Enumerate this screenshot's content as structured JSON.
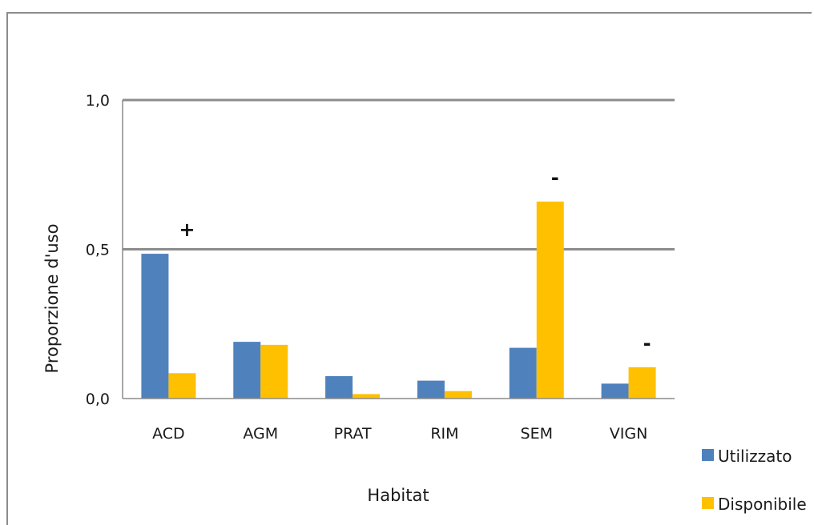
{
  "chart_data": {
    "type": "bar",
    "title": "",
    "xlabel": "Habitat",
    "ylabel": "Proporzione d'uso",
    "ylim": [
      0,
      1.0
    ],
    "yticks": [
      {
        "value": 0.0,
        "label": "0,0"
      },
      {
        "value": 0.5,
        "label": "0,5"
      },
      {
        "value": 1.0,
        "label": "1,0"
      }
    ],
    "grid": "major horizontal lines at 0,5 and 1,0",
    "legend_position": "right",
    "categories": [
      "ACD",
      "AGM",
      "PRAT",
      "RIM",
      "SEM",
      "VIGN"
    ],
    "series": [
      {
        "name": "Utilizzato",
        "color": "#4f81bd",
        "values": [
          0.485,
          0.19,
          0.075,
          0.06,
          0.17,
          0.05
        ]
      },
      {
        "name": "Disponibile",
        "color": "#ffc000",
        "values": [
          0.085,
          0.18,
          0.015,
          0.025,
          0.66,
          0.105
        ]
      }
    ],
    "annotations": [
      {
        "category": "ACD",
        "text": "+"
      },
      {
        "category": "SEM",
        "text": "-"
      },
      {
        "category": "VIGN",
        "text": "-"
      }
    ]
  }
}
